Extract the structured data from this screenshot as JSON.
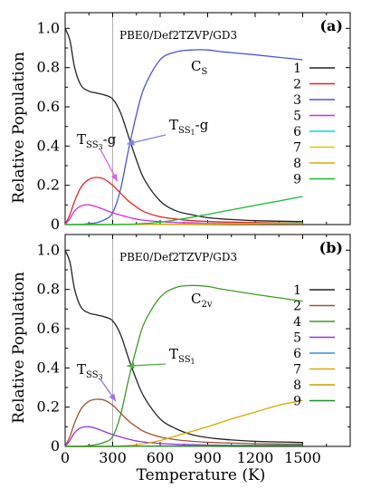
{
  "chart_data": [
    {
      "type": "line",
      "panel_label": "(a)",
      "method_label": "PBE0/Def2TZVP/GD3",
      "xlabel": "",
      "ylabel": "Relative Population",
      "xlim": [
        0,
        1800
      ],
      "ylim": [
        0,
        1.08
      ],
      "xticks": [
        0,
        300,
        600,
        900,
        1200,
        1500
      ],
      "yticks": [
        0,
        0.2,
        0.4,
        0.6,
        0.8,
        1.0
      ],
      "xtick_labels": [
        "",
        "",
        "",
        "",
        "",
        ""
      ],
      "ytick_labels": [
        "0",
        "0.2",
        "0.4",
        "0.6",
        "0.8",
        "1.0"
      ],
      "vline_x": 300,
      "legend": {
        "placement": "right",
        "entries": [
          "1",
          "2",
          "3",
          "5",
          "6",
          "7",
          "8",
          "9"
        ]
      },
      "annotations": [
        {
          "main": "T",
          "sub": "SS",
          "subsub": "3",
          "tail": "-g",
          "target_x": 330,
          "target_y": 0.22
        },
        {
          "main": "T",
          "sub": "SS",
          "subsub": "1",
          "tail": "-g",
          "target_x": 390,
          "target_y": 0.41
        },
        {
          "main": "C",
          "sub": "S",
          "subsub": "",
          "tail": ""
        }
      ],
      "series": [
        {
          "name": "1",
          "color": "#222222",
          "x": [
            0,
            30,
            60,
            100,
            150,
            200,
            250,
            300,
            350,
            400,
            450,
            500,
            600,
            700,
            800,
            900,
            1000,
            1200,
            1500
          ],
          "y": [
            1.0,
            0.94,
            0.8,
            0.71,
            0.68,
            0.67,
            0.66,
            0.64,
            0.57,
            0.45,
            0.33,
            0.23,
            0.12,
            0.07,
            0.05,
            0.035,
            0.028,
            0.02,
            0.015
          ]
        },
        {
          "name": "2",
          "color": "#e8231f",
          "x": [
            0,
            30,
            60,
            100,
            150,
            200,
            250,
            300,
            350,
            400,
            450,
            500,
            600,
            700,
            800,
            900,
            1000,
            1200,
            1500
          ],
          "y": [
            0.0,
            0.05,
            0.12,
            0.19,
            0.23,
            0.24,
            0.23,
            0.2,
            0.16,
            0.12,
            0.09,
            0.065,
            0.04,
            0.028,
            0.02,
            0.016,
            0.013,
            0.01,
            0.008
          ]
        },
        {
          "name": "3",
          "color": "#4a55d8",
          "x": [
            0,
            30,
            60,
            100,
            150,
            200,
            250,
            300,
            350,
            400,
            450,
            500,
            600,
            700,
            800,
            900,
            1000,
            1200,
            1500
          ],
          "y": [
            0.0,
            0.0,
            0.0,
            0.0,
            0.005,
            0.01,
            0.025,
            0.06,
            0.18,
            0.38,
            0.56,
            0.7,
            0.84,
            0.88,
            0.89,
            0.89,
            0.88,
            0.865,
            0.84
          ]
        },
        {
          "name": "5",
          "color": "#d22de0",
          "x": [
            0,
            30,
            60,
            100,
            150,
            200,
            250,
            300,
            350,
            400,
            450,
            500,
            600,
            700,
            800,
            900,
            1000,
            1200,
            1500
          ],
          "y": [
            0.0,
            0.03,
            0.07,
            0.095,
            0.1,
            0.09,
            0.075,
            0.06,
            0.048,
            0.037,
            0.028,
            0.022,
            0.015,
            0.011,
            0.009,
            0.007,
            0.006,
            0.005,
            0.004
          ]
        },
        {
          "name": "6",
          "color": "#00d8d8",
          "x": [
            0,
            300,
            600,
            900,
            1200,
            1500
          ],
          "y": [
            0.0,
            0.0,
            0.002,
            0.004,
            0.006,
            0.008
          ]
        },
        {
          "name": "7",
          "color": "#e6c800",
          "x": [
            0,
            300,
            600,
            900,
            1200,
            1500
          ],
          "y": [
            0.0,
            0.0,
            0.001,
            0.003,
            0.005,
            0.007
          ]
        },
        {
          "name": "8",
          "color": "#d9a800",
          "x": [
            0,
            300,
            600,
            900,
            1200,
            1500
          ],
          "y": [
            0.0,
            0.0,
            0.001,
            0.002,
            0.004,
            0.005
          ]
        },
        {
          "name": "9",
          "color": "#17b832",
          "x": [
            0,
            300,
            450,
            600,
            750,
            900,
            1050,
            1200,
            1350,
            1500
          ],
          "y": [
            0.0,
            0.0,
            0.003,
            0.012,
            0.03,
            0.052,
            0.075,
            0.098,
            0.12,
            0.143
          ]
        }
      ]
    },
    {
      "type": "line",
      "panel_label": "(b)",
      "method_label": "PBE0/Def2TZVP/GD3",
      "xlabel": "Temperature (K)",
      "ylabel": "Relative Population",
      "xlim": [
        0,
        1800
      ],
      "ylim": [
        0,
        1.08
      ],
      "xticks": [
        0,
        300,
        600,
        900,
        1200,
        1500
      ],
      "yticks": [
        0,
        0.2,
        0.4,
        0.6,
        0.8,
        1.0
      ],
      "xtick_labels": [
        "0",
        "300",
        "600",
        "900",
        "1200",
        "1500"
      ],
      "ytick_labels": [
        "0",
        "0.2",
        "0.4",
        "0.6",
        "0.8",
        "1.0"
      ],
      "vline_x": 300,
      "legend": {
        "placement": "right",
        "entries": [
          "1",
          "2",
          "4",
          "5",
          "6",
          "7",
          "8",
          "9"
        ]
      },
      "annotations": [
        {
          "main": "T",
          "sub": "SS",
          "subsub": "3",
          "tail": "",
          "target_x": 320,
          "target_y": 0.23
        },
        {
          "main": "T",
          "sub": "SS",
          "subsub": "1",
          "tail": "",
          "target_x": 390,
          "target_y": 0.41
        },
        {
          "main": "C",
          "sub": "2v",
          "subsub": "",
          "tail": ""
        }
      ],
      "series": [
        {
          "name": "1",
          "color": "#222222",
          "x": [
            0,
            30,
            60,
            100,
            150,
            200,
            250,
            300,
            350,
            400,
            450,
            500,
            600,
            700,
            800,
            900,
            1000,
            1200,
            1500
          ],
          "y": [
            1.0,
            0.94,
            0.8,
            0.71,
            0.68,
            0.67,
            0.66,
            0.64,
            0.57,
            0.45,
            0.34,
            0.25,
            0.14,
            0.09,
            0.06,
            0.045,
            0.036,
            0.026,
            0.02
          ]
        },
        {
          "name": "2",
          "color": "#a0522d",
          "x": [
            0,
            30,
            60,
            100,
            150,
            200,
            250,
            300,
            350,
            400,
            450,
            500,
            600,
            700,
            800,
            900,
            1000,
            1200,
            1500
          ],
          "y": [
            0.0,
            0.05,
            0.12,
            0.19,
            0.23,
            0.24,
            0.235,
            0.21,
            0.17,
            0.13,
            0.1,
            0.075,
            0.048,
            0.034,
            0.026,
            0.021,
            0.018,
            0.014,
            0.011
          ]
        },
        {
          "name": "4",
          "color": "#3c9a28",
          "x": [
            0,
            30,
            60,
            100,
            150,
            200,
            250,
            300,
            350,
            400,
            450,
            500,
            600,
            700,
            800,
            900,
            1000,
            1200,
            1500
          ],
          "y": [
            0.0,
            0.0,
            0.0,
            0.0,
            0.004,
            0.01,
            0.022,
            0.05,
            0.16,
            0.34,
            0.5,
            0.63,
            0.76,
            0.81,
            0.82,
            0.815,
            0.8,
            0.775,
            0.74
          ]
        },
        {
          "name": "5",
          "color": "#9b30e0",
          "x": [
            0,
            30,
            60,
            100,
            150,
            200,
            250,
            300,
            350,
            400,
            450,
            500,
            600,
            700,
            800,
            900,
            1000,
            1200,
            1500
          ],
          "y": [
            0.0,
            0.03,
            0.07,
            0.095,
            0.1,
            0.09,
            0.075,
            0.06,
            0.048,
            0.037,
            0.028,
            0.022,
            0.015,
            0.011,
            0.009,
            0.007,
            0.006,
            0.005,
            0.004
          ]
        },
        {
          "name": "6",
          "color": "#3a8fd8",
          "x": [
            0,
            300,
            600,
            900,
            1200,
            1500
          ],
          "y": [
            0.0,
            0.0,
            0.002,
            0.004,
            0.006,
            0.008
          ]
        },
        {
          "name": "7",
          "color": "#d9a800",
          "x": [
            0,
            300,
            450,
            600,
            750,
            900,
            1050,
            1200,
            1350,
            1500
          ],
          "y": [
            0.0,
            0.0,
            0.008,
            0.03,
            0.065,
            0.1,
            0.14,
            0.175,
            0.21,
            0.235
          ]
        },
        {
          "name": "8",
          "color": "#c8a000",
          "x": [
            0,
            300,
            600,
            900,
            1200,
            1500
          ],
          "y": [
            0.0,
            0.0,
            0.001,
            0.002,
            0.004,
            0.005
          ]
        },
        {
          "name": "9",
          "color": "#1f8f2a",
          "x": [
            0,
            300,
            600,
            900,
            1200,
            1500
          ],
          "y": [
            0.0,
            0.0,
            0.001,
            0.002,
            0.003,
            0.004
          ]
        }
      ]
    }
  ]
}
